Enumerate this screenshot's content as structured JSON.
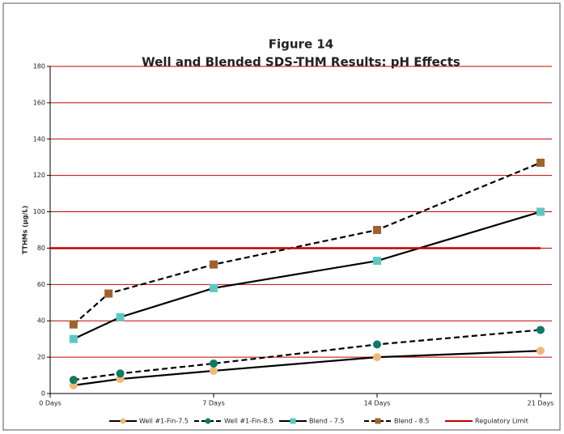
{
  "chart_data": {
    "type": "line",
    "title": "Figure 14",
    "subtitle": "Well and Blended SDS-THM Results: pH Effects",
    "y_label": "TTHMs (µg/L)",
    "xlim": [
      0,
      21
    ],
    "xticks": [
      {
        "value": 0,
        "label": "0 Days"
      },
      {
        "value": 7,
        "label": "7 Days"
      },
      {
        "value": 14,
        "label": "14 Days"
      },
      {
        "value": 21,
        "label": "21 Days"
      }
    ],
    "ylim": [
      0,
      180
    ],
    "yticks": [
      0,
      20,
      40,
      60,
      80,
      100,
      120,
      140,
      160,
      180
    ],
    "grid": true,
    "grid_color": "#c00000",
    "legend": "bottom",
    "series": [
      {
        "name": "Well #1-Fin-7.5",
        "color": "#f2b879",
        "line_color": "#000000",
        "dash": false,
        "marker": "circle",
        "x": [
          1,
          3,
          7,
          14,
          21
        ],
        "values": [
          4.5,
          8,
          12.5,
          20,
          23.5
        ]
      },
      {
        "name": "Well #1-Fin-8.5",
        "color": "#0e7a63",
        "line_color": "#000000",
        "dash": true,
        "marker": "circle",
        "x": [
          1,
          3,
          7,
          14,
          21
        ],
        "values": [
          7.5,
          11,
          16.5,
          27,
          35
        ]
      },
      {
        "name": "Blend - 7.5",
        "color": "#5ec8c0",
        "line_color": "#000000",
        "dash": false,
        "marker": "square",
        "x": [
          1,
          3,
          7,
          14,
          21
        ],
        "values": [
          30,
          42,
          58,
          73,
          100
        ]
      },
      {
        "name": "Blend - 8.5",
        "color": "#a0622d",
        "line_color": "#000000",
        "dash": true,
        "marker": "square",
        "x": [
          1,
          2.5,
          7,
          14,
          21
        ],
        "values": [
          38,
          55,
          71,
          90,
          127
        ]
      },
      {
        "name": "Regulatory Limit",
        "color": "#c00000",
        "line_color": "#c00000",
        "dash": false,
        "marker": "none",
        "x": [
          0,
          21
        ],
        "values": [
          80,
          80
        ]
      }
    ]
  }
}
